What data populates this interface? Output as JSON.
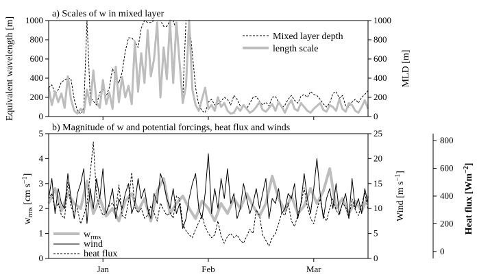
{
  "chart_data": [
    {
      "type": "line",
      "title": "a) Scales of w in mixed layer",
      "ylabel": "Equivalent wavelength [m]",
      "y2label": "MLD [m]",
      "ylim": [
        0,
        1000
      ],
      "y2lim": [
        0,
        1000
      ],
      "yticks": [
        "0",
        "200",
        "400",
        "600",
        "800",
        "1000"
      ],
      "y2ticks": [
        "0",
        "200",
        "400",
        "600",
        "800",
        "1000"
      ],
      "xlim": [
        0,
        100
      ],
      "xticks": [
        "Jan",
        "Feb",
        "Mar"
      ],
      "xtick_positions": [
        17,
        50,
        83
      ],
      "legend": "top-right",
      "series": [
        {
          "name": "Mixed layer depth",
          "style": "dashed",
          "color": "#000000",
          "x": [
            0,
            1,
            2,
            3,
            4,
            5,
            6,
            7,
            8,
            9,
            10,
            11,
            12,
            13,
            14,
            15,
            16,
            17,
            18,
            19,
            20,
            21,
            22,
            23,
            24,
            25,
            26,
            27,
            28,
            29,
            30,
            31,
            32,
            33,
            34,
            35,
            36,
            37,
            38,
            39,
            40,
            41,
            42,
            43,
            44,
            45,
            46,
            47,
            48,
            49,
            50,
            51,
            52,
            53,
            54,
            55,
            56,
            57,
            58,
            59,
            60,
            61,
            62,
            63,
            64,
            65,
            66,
            67,
            68,
            69,
            70,
            71,
            72,
            73,
            74,
            75,
            76,
            77,
            78,
            79,
            80,
            81,
            82,
            83,
            84,
            85,
            86,
            87,
            88,
            89,
            90,
            91,
            92,
            93,
            94,
            95,
            96,
            97,
            98,
            99,
            100
          ],
          "values": [
            300,
            330,
            240,
            280,
            360,
            380,
            400,
            390,
            180,
            60,
            30,
            90,
            1000,
            200,
            160,
            120,
            250,
            280,
            210,
            300,
            500,
            420,
            350,
            460,
            680,
            820,
            820,
            780,
            720,
            920,
            1000,
            980,
            980,
            1000,
            1000,
            1000,
            940,
            940,
            1000,
            1000,
            900,
            600,
            200,
            1000,
            1000,
            650,
            300,
            120,
            60,
            40,
            150,
            180,
            120,
            130,
            160,
            200,
            180,
            120,
            220,
            180,
            110,
            100,
            80,
            140,
            200,
            210,
            160,
            120,
            150,
            110,
            200,
            210,
            150,
            90,
            120,
            180,
            220,
            170,
            140,
            210,
            230,
            200,
            260,
            230,
            220,
            180,
            130,
            100,
            140,
            240,
            260,
            190,
            220,
            110,
            100,
            150,
            180,
            140,
            200,
            230,
            270
          ]
        },
        {
          "name": "length scale",
          "style": "solid",
          "color": "#bdbdbd",
          "x": [
            0,
            1,
            2,
            3,
            4,
            5,
            6,
            7,
            8,
            9,
            10,
            11,
            12,
            13,
            14,
            15,
            16,
            17,
            18,
            19,
            20,
            21,
            22,
            23,
            24,
            25,
            26,
            27,
            28,
            29,
            30,
            31,
            32,
            33,
            34,
            35,
            36,
            37,
            38,
            39,
            40,
            41,
            42,
            43,
            44,
            45,
            46,
            47,
            48,
            49,
            50,
            51,
            52,
            53,
            54,
            55,
            56,
            57,
            58,
            59,
            60,
            61,
            62,
            63,
            64,
            65,
            66,
            67,
            68,
            69,
            70,
            71,
            72,
            73,
            74,
            75,
            76,
            77,
            78,
            79,
            80,
            81,
            82,
            83,
            84,
            85,
            86,
            87,
            88,
            89,
            90,
            91,
            92,
            93,
            94,
            95,
            96,
            97,
            98,
            99,
            100
          ],
          "values": [
            300,
            120,
            260,
            150,
            240,
            90,
            420,
            180,
            60,
            30,
            80,
            40,
            280,
            120,
            480,
            150,
            90,
            380,
            130,
            250,
            80,
            520,
            150,
            410,
            200,
            320,
            130,
            780,
            260,
            660,
            350,
            900,
            420,
            600,
            980,
            200,
            720,
            390,
            1000,
            350,
            980,
            560,
            140,
            320,
            1000,
            280,
            120,
            60,
            180,
            300,
            80,
            120,
            60,
            200,
            100,
            140,
            60,
            30,
            40,
            100,
            60,
            120,
            80,
            40,
            60,
            100,
            150,
            70,
            50,
            90,
            130,
            60,
            150,
            100,
            40,
            120,
            170,
            80,
            60,
            140,
            100,
            60,
            40,
            80,
            110,
            140,
            70,
            50,
            120,
            100,
            60,
            180,
            80,
            50,
            140,
            120,
            60,
            40,
            100,
            170,
            80
          ]
        }
      ]
    },
    {
      "type": "line",
      "title": "b) Magnitude of w and potential forcings, heat flux and winds",
      "ylabel": "w_rms [cm s^-1]",
      "ylabel_main": "w",
      "ylabel_sub": "rms",
      "ylabel_rest": " [cm s",
      "ylabel_sup": "−1",
      "ylabel_close": "]",
      "y2label": "Wind [m s^-1]",
      "y2label_main": "Wind [m s",
      "y2label_sup": "−1",
      "y2label_close": "]",
      "y3label": "Heat flux [Wm^-2]",
      "y3label_main": "Heat flux [Wm",
      "y3label_sup": "−2",
      "y3label_close": "]",
      "ylim": [
        0,
        5
      ],
      "y2lim": [
        0,
        25
      ],
      "y3lim": [
        -50,
        850
      ],
      "yticks": [
        "0",
        "1",
        "2",
        "3",
        "4",
        "5"
      ],
      "y2ticks": [
        "0",
        "5",
        "10",
        "15",
        "20",
        "25"
      ],
      "y3ticks": [
        "0",
        "200",
        "400",
        "600",
        "800"
      ],
      "xlim": [
        0,
        100
      ],
      "xticks": [
        "Jan",
        "Feb",
        "Mar"
      ],
      "xtick_positions": [
        17,
        50,
        83
      ],
      "legend": "bottom-left",
      "series": [
        {
          "name": "w_rms",
          "legend_main": "w",
          "legend_sub": "rms",
          "style": "solid-thick",
          "color": "#bdbdbd",
          "axis": "left",
          "x": [
            0,
            2,
            4,
            6,
            8,
            10,
            12,
            14,
            16,
            18,
            20,
            22,
            24,
            26,
            28,
            30,
            32,
            34,
            36,
            38,
            40,
            42,
            44,
            46,
            48,
            50,
            52,
            54,
            56,
            58,
            60,
            62,
            64,
            66,
            68,
            70,
            72,
            74,
            76,
            78,
            80,
            82,
            84,
            86,
            88,
            90,
            92,
            94,
            96,
            98,
            100
          ],
          "values": [
            2.2,
            2.8,
            1.9,
            2.6,
            2.2,
            2.0,
            3.1,
            1.8,
            2.4,
            1.7,
            2.0,
            1.5,
            2.3,
            2.6,
            1.9,
            2.4,
            1.5,
            2.7,
            3.2,
            1.8,
            2.2,
            2.5,
            2.0,
            1.6,
            2.3,
            2.0,
            1.5,
            2.2,
            1.8,
            2.4,
            2.0,
            2.6,
            2.1,
            1.7,
            2.2,
            3.3,
            2.4,
            1.9,
            2.5,
            1.8,
            2.1,
            2.8,
            2.2,
            2.7,
            3.6,
            2.0,
            2.4,
            1.8,
            2.3,
            1.9,
            2.5
          ]
        },
        {
          "name": "wind",
          "style": "solid",
          "color": "#000000",
          "axis": "right",
          "x": [
            0,
            1,
            2,
            3,
            4,
            5,
            6,
            7,
            8,
            9,
            10,
            11,
            12,
            13,
            14,
            15,
            16,
            17,
            18,
            19,
            20,
            21,
            22,
            23,
            24,
            25,
            26,
            27,
            28,
            29,
            30,
            31,
            32,
            33,
            34,
            35,
            36,
            37,
            38,
            39,
            40,
            41,
            42,
            43,
            44,
            45,
            46,
            47,
            48,
            49,
            50,
            51,
            52,
            53,
            54,
            55,
            56,
            57,
            58,
            59,
            60,
            61,
            62,
            63,
            64,
            65,
            66,
            67,
            68,
            69,
            70,
            71,
            72,
            73,
            74,
            75,
            76,
            77,
            78,
            79,
            80,
            81,
            82,
            83,
            84,
            85,
            86,
            87,
            88,
            89,
            90,
            91,
            92,
            93,
            94,
            95,
            96,
            97,
            98,
            99,
            100
          ],
          "values": [
            12,
            16,
            9,
            14,
            11,
            10,
            17,
            12,
            8,
            13,
            15,
            18,
            7,
            14,
            10,
            16,
            12,
            18,
            9,
            11,
            14,
            8,
            12,
            10,
            13,
            15,
            9,
            11,
            16,
            12,
            14,
            10,
            8,
            13,
            11,
            17,
            15,
            12,
            10,
            14,
            9,
            11,
            6,
            8,
            12,
            15,
            17,
            10,
            8,
            13,
            21,
            9,
            14,
            10,
            16,
            12,
            18,
            11,
            13,
            8,
            10,
            15,
            12,
            9,
            11,
            14,
            10,
            13,
            16,
            8,
            12,
            11,
            14,
            9,
            10,
            13,
            12,
            15,
            8,
            11,
            17,
            12,
            9,
            14,
            20,
            13,
            8,
            12,
            14,
            10,
            15,
            9,
            11,
            13,
            8,
            16,
            10,
            12,
            9,
            14,
            11
          ]
        },
        {
          "name": "heat flux",
          "style": "dashed",
          "color": "#000000",
          "axis": "far-right",
          "x": [
            0,
            1,
            2,
            3,
            4,
            5,
            6,
            7,
            8,
            9,
            10,
            11,
            12,
            13,
            14,
            15,
            16,
            17,
            18,
            19,
            20,
            21,
            22,
            23,
            24,
            25,
            26,
            27,
            28,
            29,
            30,
            31,
            32,
            33,
            34,
            35,
            36,
            37,
            38,
            39,
            40,
            41,
            42,
            43,
            44,
            45,
            46,
            47,
            48,
            49,
            50,
            51,
            52,
            53,
            54,
            55,
            56,
            57,
            58,
            59,
            60,
            61,
            62,
            63,
            64,
            65,
            66,
            67,
            68,
            69,
            70,
            71,
            72,
            73,
            74,
            75,
            76,
            77,
            78,
            79,
            80,
            81,
            82,
            83,
            84,
            85,
            86,
            87,
            88,
            89,
            90,
            91,
            92,
            93,
            94,
            95,
            96,
            97,
            98,
            99,
            100
          ],
          "values": [
            380,
            420,
            300,
            350,
            260,
            240,
            500,
            320,
            280,
            310,
            200,
            260,
            340,
            560,
            790,
            400,
            320,
            260,
            280,
            330,
            350,
            300,
            480,
            260,
            240,
            360,
            570,
            320,
            280,
            310,
            240,
            260,
            330,
            280,
            220,
            350,
            300,
            260,
            280,
            240,
            400,
            380,
            200,
            150,
            120,
            100,
            160,
            210,
            260,
            180,
            130,
            100,
            120,
            220,
            110,
            60,
            110,
            130,
            100,
            120,
            80,
            60,
            110,
            160,
            130,
            300,
            260,
            120,
            80,
            40,
            100,
            130,
            200,
            280,
            260,
            350,
            220,
            180,
            260,
            340,
            460,
            320,
            240,
            200,
            300,
            380,
            260,
            220,
            310,
            380,
            300,
            260,
            350,
            320,
            240,
            380,
            300,
            260,
            340,
            420,
            300
          ]
        }
      ]
    }
  ]
}
